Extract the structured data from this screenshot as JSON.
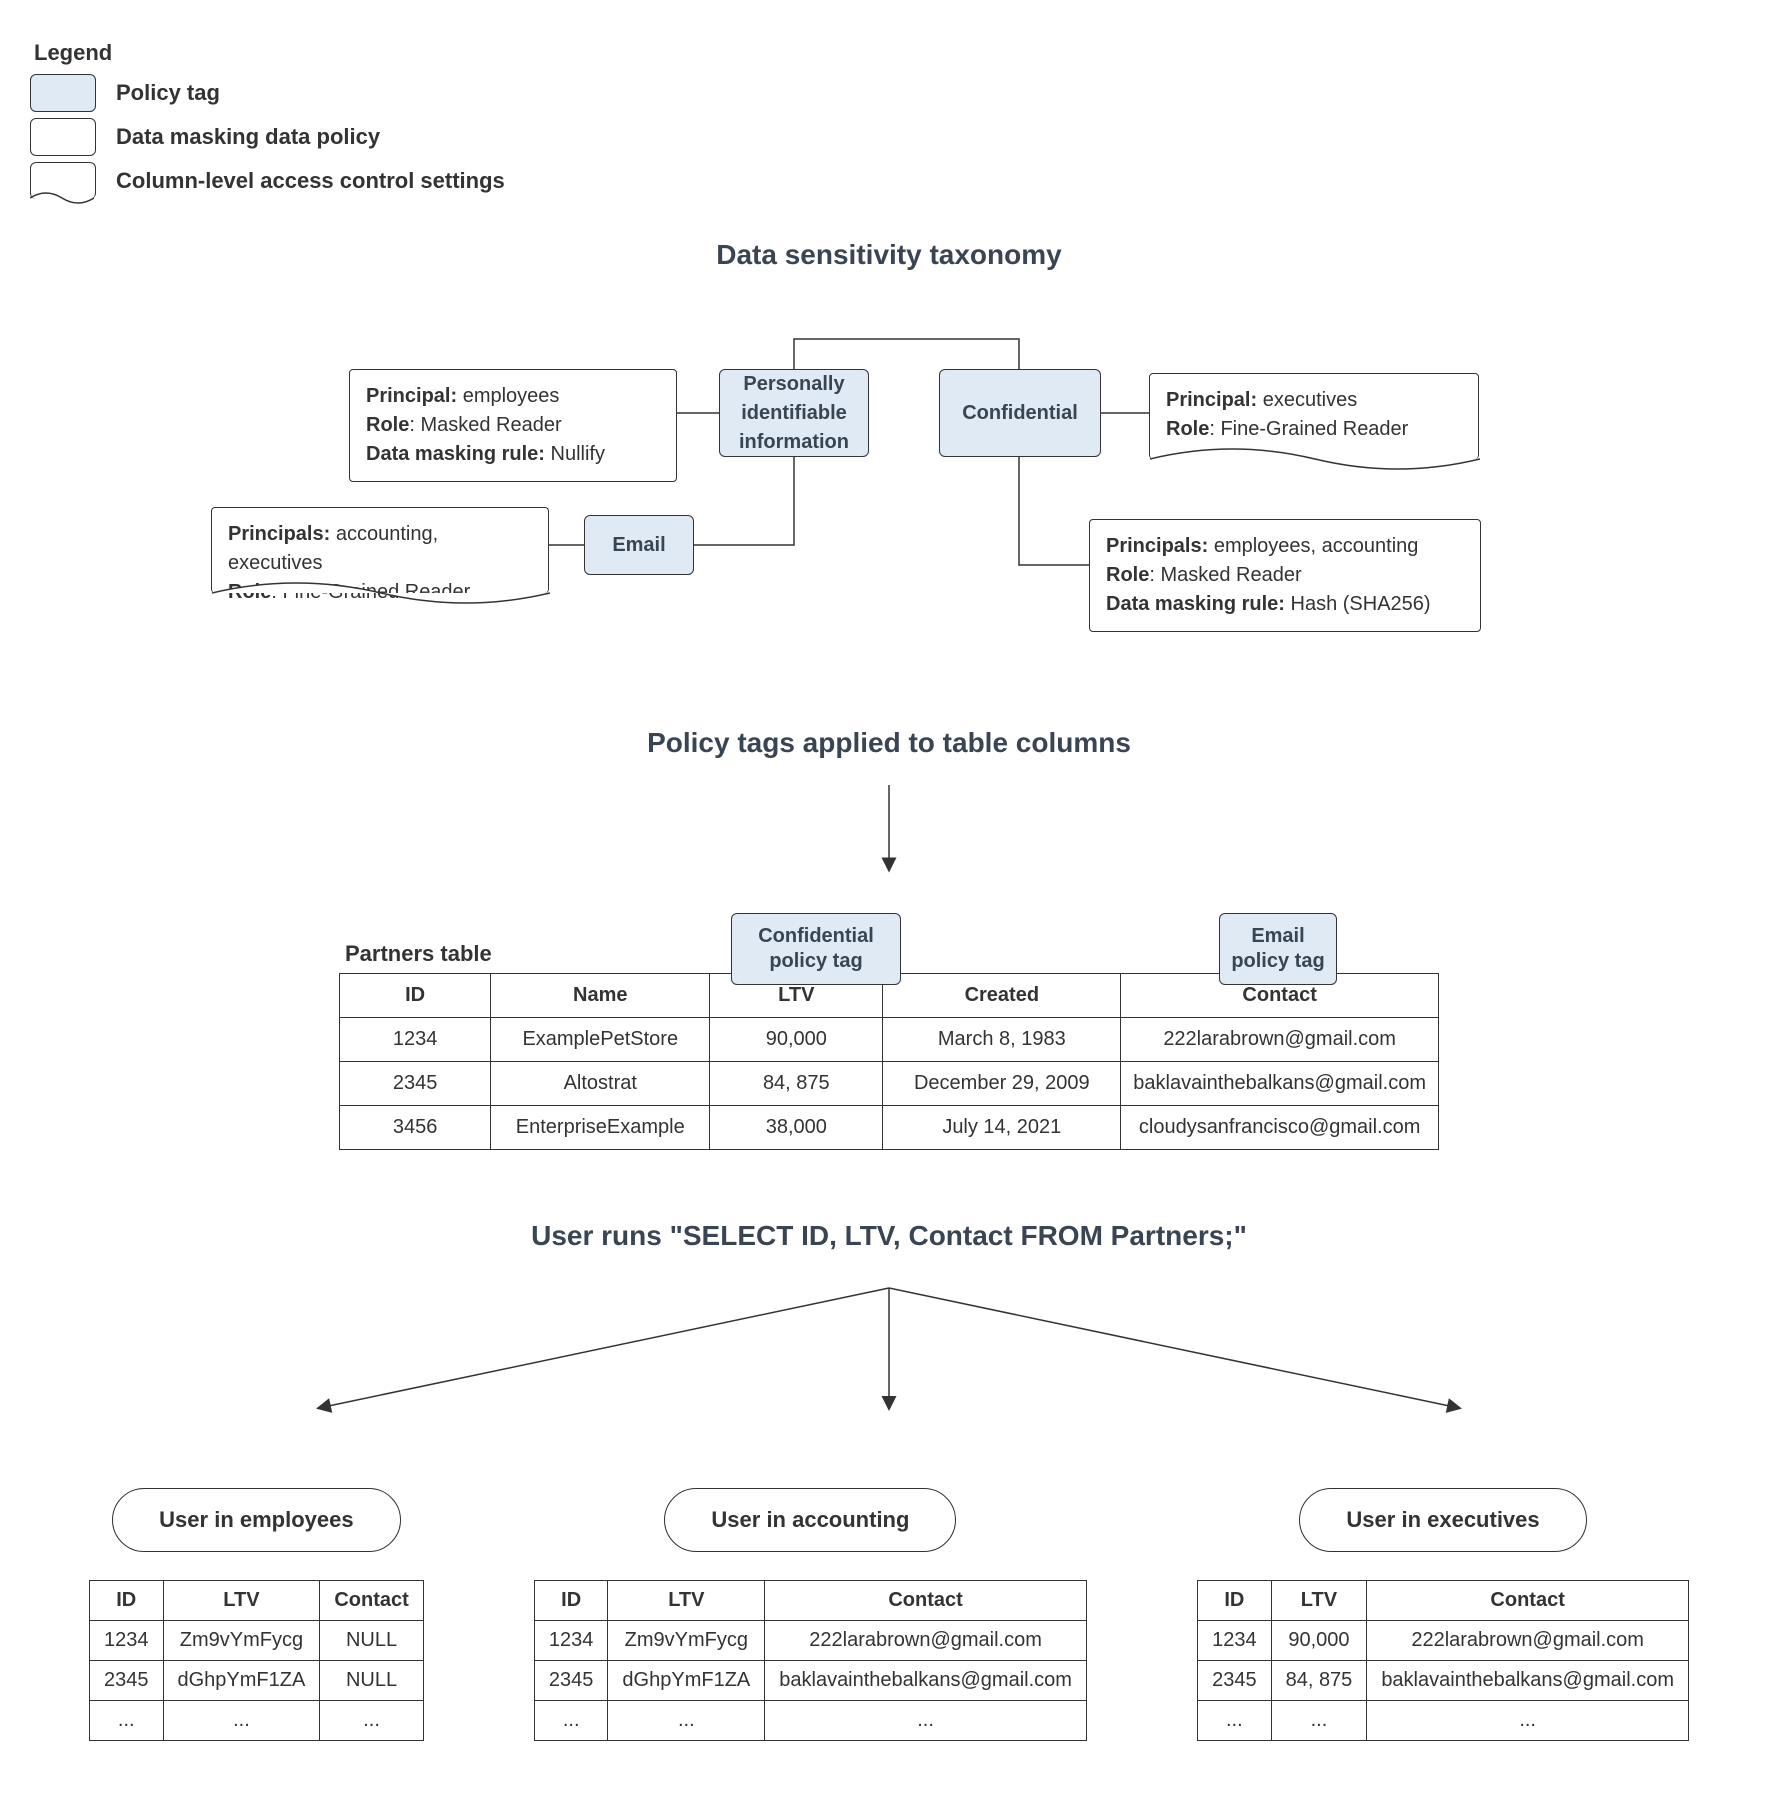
{
  "colors": {
    "tag_fill": "#e0eaf4",
    "border": "#333333",
    "text": "#333333",
    "heading": "#3a4553",
    "bg": "#ffffff"
  },
  "legend": {
    "title": "Legend",
    "items": [
      {
        "label": "Policy tag",
        "kind": "tag"
      },
      {
        "label": "Data masking data policy",
        "kind": "plain"
      },
      {
        "label": "Column-level access control settings",
        "kind": "wavy"
      }
    ]
  },
  "sections": {
    "taxonomy": "Data sensitivity taxonomy",
    "applied": "Policy tags applied to table columns",
    "query": "User runs \"SELECT ID, LTV, Contact FROM Partners;\""
  },
  "taxonomy": {
    "pii_tag": "Personally identifiable information",
    "confidential_tag": "Confidential",
    "email_tag": "Email",
    "pii_policy": {
      "principal": "employees",
      "role": "Masked Reader",
      "rule": "Nullify"
    },
    "conf_access": {
      "principal": "executives",
      "role": "Fine-Grained Reader"
    },
    "email_access": {
      "principals": "accounting, executives",
      "role": "Fine-Grained Reader"
    },
    "conf_policy": {
      "principals": "employees, accounting",
      "role": "Masked Reader",
      "rule": "Hash (SHA256)"
    }
  },
  "partners": {
    "caption": "Partners table",
    "confidential_tag": "Confidential policy tag",
    "email_tag": "Email policy tag",
    "columns": [
      "ID",
      "Name",
      "LTV",
      "Created",
      "Contact"
    ],
    "rows": [
      [
        "1234",
        "ExamplePetStore",
        "90,000",
        "March 8, 1983",
        "222larabrown@gmail.com"
      ],
      [
        "2345",
        "Altostrat",
        "84, 875",
        "December 29, 2009",
        "baklavainthebalkans@gmail.com"
      ],
      [
        "3456",
        "EnterpriseExample",
        "38,000",
        "July 14, 2021",
        "cloudysanfrancisco@gmail.com"
      ]
    ]
  },
  "results": {
    "cols": [
      "ID",
      "LTV",
      "Contact"
    ],
    "employees": {
      "label": "User in employees",
      "rows": [
        [
          "1234",
          "Zm9vYmFycg",
          "NULL"
        ],
        [
          "2345",
          "dGhpYmF1ZA",
          "NULL"
        ],
        [
          "...",
          "...",
          "..."
        ]
      ]
    },
    "accounting": {
      "label": "User in accounting",
      "rows": [
        [
          "1234",
          "Zm9vYmFycg",
          "222larabrown@gmail.com"
        ],
        [
          "2345",
          "dGhpYmF1ZA",
          "baklavainthebalkans@gmail.com"
        ],
        [
          "...",
          "...",
          "..."
        ]
      ]
    },
    "executives": {
      "label": "User in executives",
      "rows": [
        [
          "1234",
          "90,000",
          "222larabrown@gmail.com"
        ],
        [
          "2345",
          "84, 875",
          "baklavainthebalkans@gmail.com"
        ],
        [
          "...",
          "...",
          "..."
        ]
      ]
    }
  },
  "labels": {
    "principal": "Principal:",
    "principals": "Principals:",
    "role": "Role",
    "rule": "Data masking rule:"
  }
}
